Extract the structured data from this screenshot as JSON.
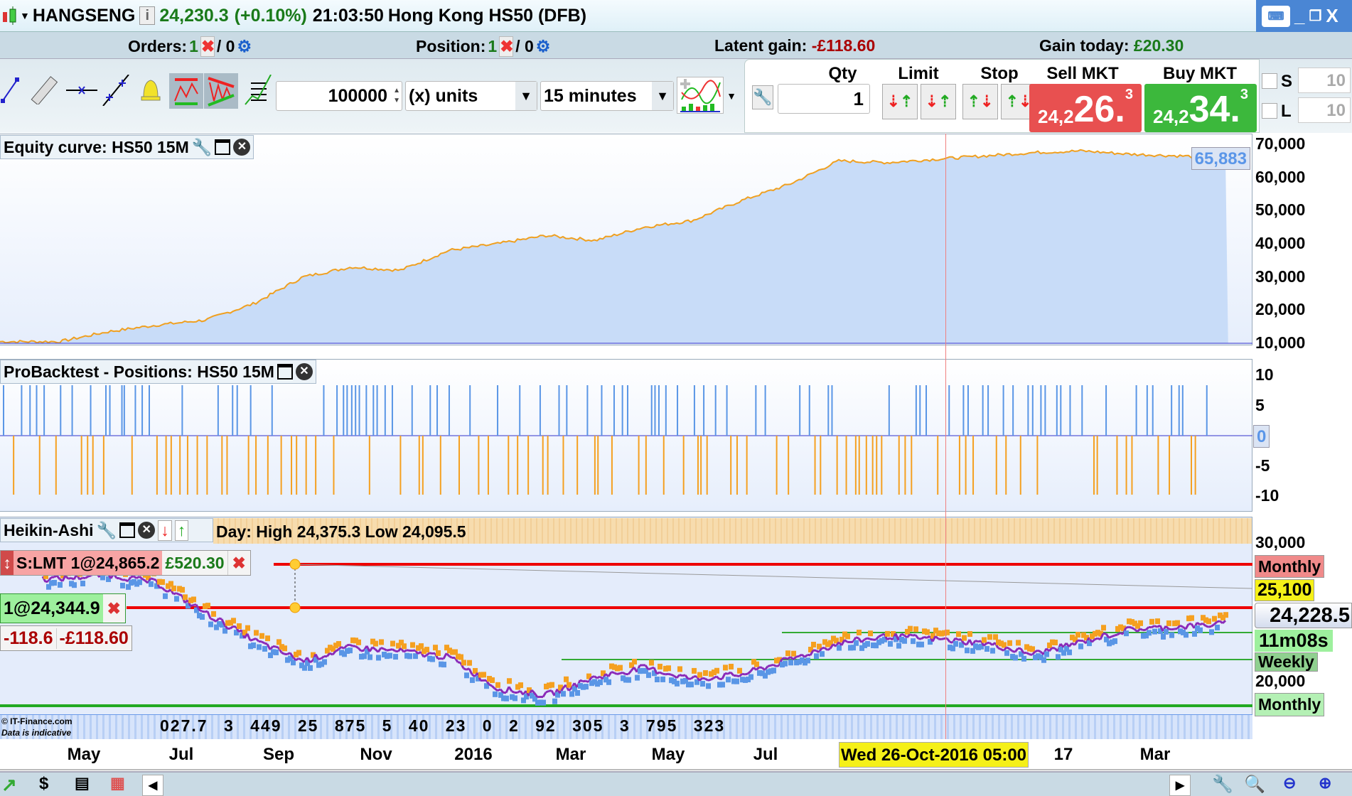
{
  "title": {
    "symbol": "HANGSENG",
    "price": "24,230.3",
    "change": "(+0.10%)",
    "time": "21:03:50",
    "name": "Hong Kong HS50 (DFB)"
  },
  "orders_bar": {
    "orders_label": "Orders:",
    "orders_count": "1",
    "orders_sep": "/ 0",
    "position_label": "Position:",
    "position_count": "1",
    "position_sep": "/ 0",
    "latent_label": "Latent gain:",
    "latent_value": "-£118.60",
    "today_label": "Gain today:",
    "today_value": "£20.30"
  },
  "toolbar": {
    "amount": "100000",
    "units": "(x) units",
    "timeframe": "15 minutes"
  },
  "trade": {
    "qty_label": "Qty",
    "qty_value": "1",
    "limit_label": "Limit",
    "stop_label": "Stop",
    "sell_label": "Sell MKT",
    "buy_label": "Buy MKT",
    "sell_small": "24,2",
    "sell_big": "26.",
    "sell_sup": "3",
    "buy_small": "24,2",
    "buy_big": "34.",
    "buy_sup": "3",
    "s_label": "S",
    "s_value": "10",
    "l_label": "L",
    "l_value": "10"
  },
  "panels": {
    "equity_title": "Equity curve: HS50 15M",
    "equity_value": "65,883",
    "equity_axis": [
      "70,000",
      "60,000",
      "50,000",
      "40,000",
      "30,000",
      "20,000",
      "10,000"
    ],
    "positions_title": "ProBacktest - Positions: HS50 15M",
    "positions_axis": [
      "10",
      "5",
      "0",
      "-5",
      "-10"
    ],
    "ha_title": "Heikin-Ashi",
    "ha_info": "Day: High 24,375.3 Low 24,095.5",
    "ha_axis": [
      "30,000",
      "20,000"
    ],
    "order_label": "S:LMT 1@24,865.2",
    "order_gain": "£520.30",
    "position_label": "1@24,344.9",
    "pos_pts": "-118.6",
    "pos_gain": "-£118.60",
    "tag_monthly_top": "Monthly",
    "tag_25100": "25,100",
    "tag_price": "24,228.5",
    "tag_timer": "11m08s",
    "tag_weekly": "Weekly",
    "tag_monthly_bottom": "Monthly",
    "volume_text": "027.7 3 449 25 875 5 40 23 0 2 92 305 3 795 323",
    "copyright": "© IT-Finance.com",
    "indicative": "Data is indicative"
  },
  "xaxis": {
    "labels": [
      "May",
      "Jul",
      "Sep",
      "Nov",
      "2016",
      "Mar",
      "May",
      "Jul",
      "17",
      "Mar"
    ],
    "cursor_date": "Wed 26-Oct-2016 05:00"
  },
  "colors": {
    "up": "#2db82d",
    "down": "#e04848",
    "equity_line": "#f0a020",
    "equity_fill": "#c8dcf8",
    "long": "#5a96e6",
    "short": "#f5a020"
  },
  "chart_data": [
    {
      "type": "area",
      "title": "Equity curve: HS50 15M",
      "start_month": "2015-04",
      "x": [
        "2015-04",
        "2015-05",
        "2015-06",
        "2015-07",
        "2015-08",
        "2015-09",
        "2015-10",
        "2015-11",
        "2015-12",
        "2016-01",
        "2016-02",
        "2016-03",
        "2016-04",
        "2016-05",
        "2016-06",
        "2016-07",
        "2016-08",
        "2016-09",
        "2016-10",
        "2016-11",
        "2016-12",
        "2017-01",
        "2017-02",
        "2017-03",
        "2017-04"
      ],
      "values": [
        10500,
        13500,
        15500,
        17000,
        22000,
        30000,
        33000,
        32000,
        38000,
        40000,
        42500,
        41000,
        45000,
        47000,
        53000,
        58000,
        65000,
        64500,
        65500,
        66500,
        67500,
        68000,
        67000,
        66500,
        65883
      ],
      "ylim": [
        10000,
        70000
      ]
    },
    {
      "type": "bar",
      "title": "ProBacktest - Positions: HS50 15M",
      "ylim": [
        -10,
        10
      ],
      "values_note_long": 10,
      "values_note_short": -10
    },
    {
      "type": "candlestick",
      "title": "Heikin-Ashi",
      "x": [
        "2015-04",
        "2015-05",
        "2015-06",
        "2015-07",
        "2015-08",
        "2015-09",
        "2015-10",
        "2015-11",
        "2015-12",
        "2016-01",
        "2016-02",
        "2016-03",
        "2016-04",
        "2016-05",
        "2016-06",
        "2016-07",
        "2016-08",
        "2016-09",
        "2016-10",
        "2016-11",
        "2016-12",
        "2017-01",
        "2017-02",
        "2017-03",
        "2017-04"
      ],
      "values": [
        27500,
        27800,
        27200,
        25000,
        23000,
        21500,
        22500,
        22200,
        21800,
        19500,
        19000,
        20300,
        21000,
        20200,
        20500,
        21600,
        22800,
        23300,
        23100,
        22800,
        22000,
        22900,
        23800,
        24000,
        24228
      ],
      "ylim": [
        18500,
        31000
      ]
    }
  ]
}
